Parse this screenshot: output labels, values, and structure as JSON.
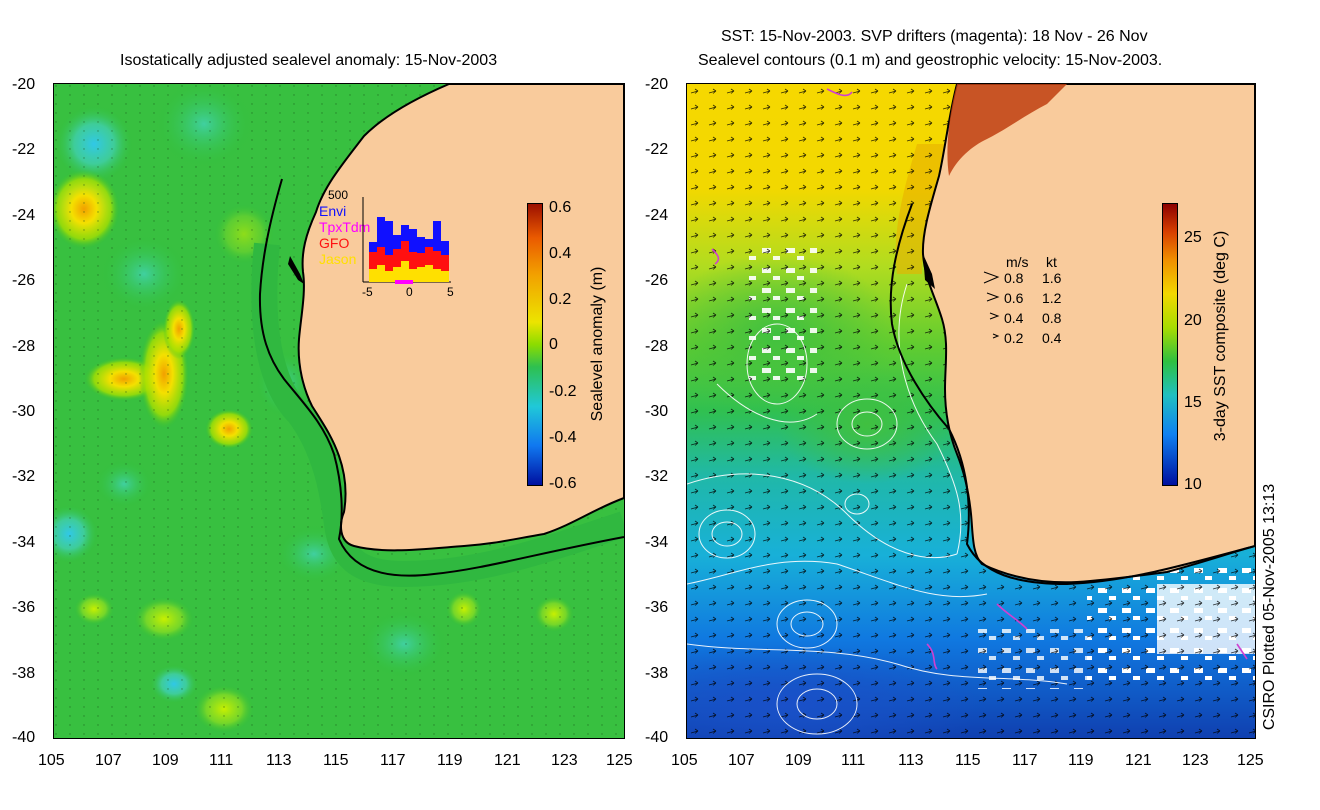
{
  "left_panel": {
    "title": "Isostatically adjusted sealevel anomaly: 15-Nov-2003",
    "colorbar": {
      "label": "Sealevel anomaly (m)",
      "ticks": [
        "0.6",
        "0.4",
        "0.2",
        "0",
        "-0.2",
        "-0.4",
        "-0.6"
      ],
      "range": [
        -0.6,
        0.6
      ]
    },
    "inset": {
      "ymax_label": "500",
      "legend": [
        {
          "name": "Envi",
          "color": "#1010ff"
        },
        {
          "name": "TpxTdm",
          "color": "#ff00ff"
        },
        {
          "name": "GFO",
          "color": "#ff1010"
        },
        {
          "name": "Jason",
          "color": "#ffe000"
        }
      ],
      "x_ticks": [
        "-5",
        "0",
        "5"
      ]
    }
  },
  "right_panel": {
    "title_line1": "SST: 15-Nov-2003. SVP drifters (magenta): 18 Nov - 26 Nov",
    "title_line2": "Sealevel contours (0.1 m) and geostrophic velocity: 15-Nov-2003.",
    "colorbar": {
      "label": "3-day SST composite (deg C)",
      "ticks": [
        "25",
        "20",
        "15",
        "10"
      ],
      "range": [
        10,
        27
      ]
    },
    "velocity_legend": {
      "header_ms": "m/s",
      "header_kt": "kt",
      "rows": [
        {
          "ms": "0.8",
          "kt": "1.6"
        },
        {
          "ms": "0.6",
          "kt": "1.2"
        },
        {
          "ms": "0.4",
          "kt": "0.8"
        },
        {
          "ms": "0.2",
          "kt": "0.4"
        }
      ]
    }
  },
  "axes": {
    "y_ticks": [
      "-20",
      "-22",
      "-24",
      "-26",
      "-28",
      "-30",
      "-32",
      "-34",
      "-36",
      "-38",
      "-40"
    ],
    "x_ticks": [
      "105",
      "107",
      "109",
      "111",
      "113",
      "115",
      "117",
      "119",
      "121",
      "123",
      "125"
    ],
    "lat_range": [
      -40,
      -20
    ],
    "lon_range": [
      105,
      125
    ]
  },
  "credit": "CSIRO Plotted 05-Nov-2005 13:13",
  "colors": {
    "land": "#f9cb9c",
    "coast": "#000000",
    "contour": "#ffffff",
    "drifter": "#d040d0"
  }
}
